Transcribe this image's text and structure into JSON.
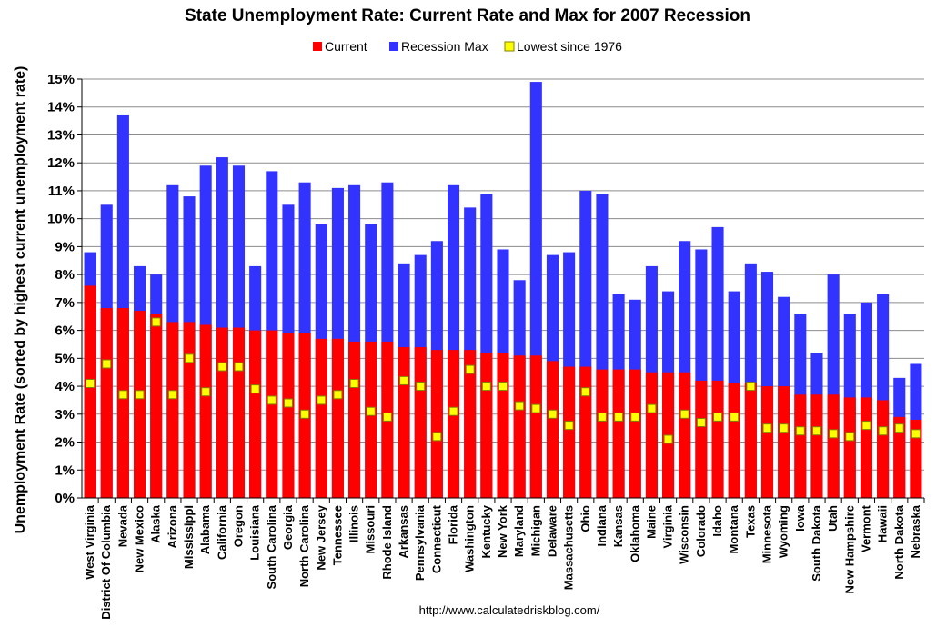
{
  "chart_data": {
    "type": "bar",
    "title": "State Unemployment Rate: Current Rate and Max for 2007 Recession",
    "ylabel": "Unemployment Rate (sorted by highest current unemployment rate)",
    "xlabel": "",
    "source": "http://www.calculatedriskblog.com/",
    "ylim": [
      0,
      15
    ],
    "y_ticks": [
      "0%",
      "1%",
      "2%",
      "3%",
      "4%",
      "5%",
      "6%",
      "7%",
      "8%",
      "9%",
      "10%",
      "11%",
      "12%",
      "13%",
      "14%",
      "15%"
    ],
    "grid": true,
    "legend_position": "top-center",
    "legend": [
      "Current",
      "Recession Max",
      "Lowest since 1976"
    ],
    "colors": {
      "current": "#ff0000",
      "max": "#3333ff",
      "lowest": "#ffff00",
      "lowest_border": "#808000",
      "grid": "#8c8c8c"
    },
    "categories": [
      "West Virginia",
      "District Of Columbia",
      "Nevada",
      "New Mexico",
      "Alaska",
      "Arizona",
      "Mississippi",
      "Alabama",
      "California",
      "Oregon",
      "Louisiana",
      "South Carolina",
      "Georgia",
      "North Carolina",
      "New Jersey",
      "Tennessee",
      "Illinois",
      "Missouri",
      "Rhode Island",
      "Arkansas",
      "Pennsylvania",
      "Connecticut",
      "Florida",
      "Washington",
      "Kentucky",
      "New York",
      "Maryland",
      "Michigan",
      "Delaware",
      "Massachusetts",
      "Ohio",
      "Indiana",
      "Kansas",
      "Oklahoma",
      "Maine",
      "Virginia",
      "Wisconsin",
      "Colorado",
      "Idaho",
      "Montana",
      "Texas",
      "Minnesota",
      "Wyoming",
      "Iowa",
      "South Dakota",
      "Utah",
      "New Hampshire",
      "Vermont",
      "Hawaii",
      "North Dakota",
      "Nebraska"
    ],
    "series": [
      {
        "name": "Current",
        "values": [
          7.6,
          6.8,
          6.8,
          6.7,
          6.6,
          6.3,
          6.3,
          6.2,
          6.1,
          6.1,
          6.0,
          6.0,
          5.9,
          5.9,
          5.7,
          5.7,
          5.6,
          5.6,
          5.6,
          5.4,
          5.4,
          5.3,
          5.3,
          5.3,
          5.2,
          5.2,
          5.1,
          5.1,
          4.9,
          4.7,
          4.7,
          4.6,
          4.6,
          4.6,
          4.5,
          4.5,
          4.5,
          4.2,
          4.2,
          4.1,
          4.1,
          4.0,
          4.0,
          3.7,
          3.7,
          3.7,
          3.6,
          3.6,
          3.5,
          2.9,
          2.8
        ]
      },
      {
        "name": "Recession Max",
        "values": [
          8.8,
          10.5,
          13.7,
          8.3,
          8.0,
          11.2,
          10.8,
          11.9,
          12.2,
          11.9,
          8.3,
          11.7,
          10.5,
          11.3,
          9.8,
          11.1,
          11.2,
          9.8,
          11.3,
          8.4,
          8.7,
          9.2,
          11.2,
          10.4,
          10.9,
          8.9,
          7.8,
          14.9,
          8.7,
          8.8,
          11.0,
          10.9,
          7.3,
          7.1,
          8.3,
          7.4,
          9.2,
          8.9,
          9.7,
          7.4,
          8.4,
          8.1,
          7.2,
          6.6,
          5.2,
          8.0,
          6.6,
          7.0,
          7.3,
          4.3,
          4.8
        ]
      },
      {
        "name": "Lowest since 1976",
        "values": [
          4.1,
          4.8,
          3.7,
          3.7,
          6.3,
          3.7,
          5.0,
          3.8,
          4.7,
          4.7,
          3.9,
          3.5,
          3.4,
          3.0,
          3.5,
          3.7,
          4.1,
          3.1,
          2.9,
          4.2,
          4.0,
          2.2,
          3.1,
          4.6,
          4.0,
          4.0,
          3.3,
          3.2,
          3.0,
          2.6,
          3.8,
          2.9,
          2.9,
          2.9,
          3.2,
          2.1,
          3.0,
          2.7,
          2.9,
          2.9,
          4.0,
          2.5,
          2.5,
          2.4,
          2.4,
          2.3,
          2.2,
          2.6,
          2.4,
          2.5,
          2.3
        ]
      }
    ]
  }
}
